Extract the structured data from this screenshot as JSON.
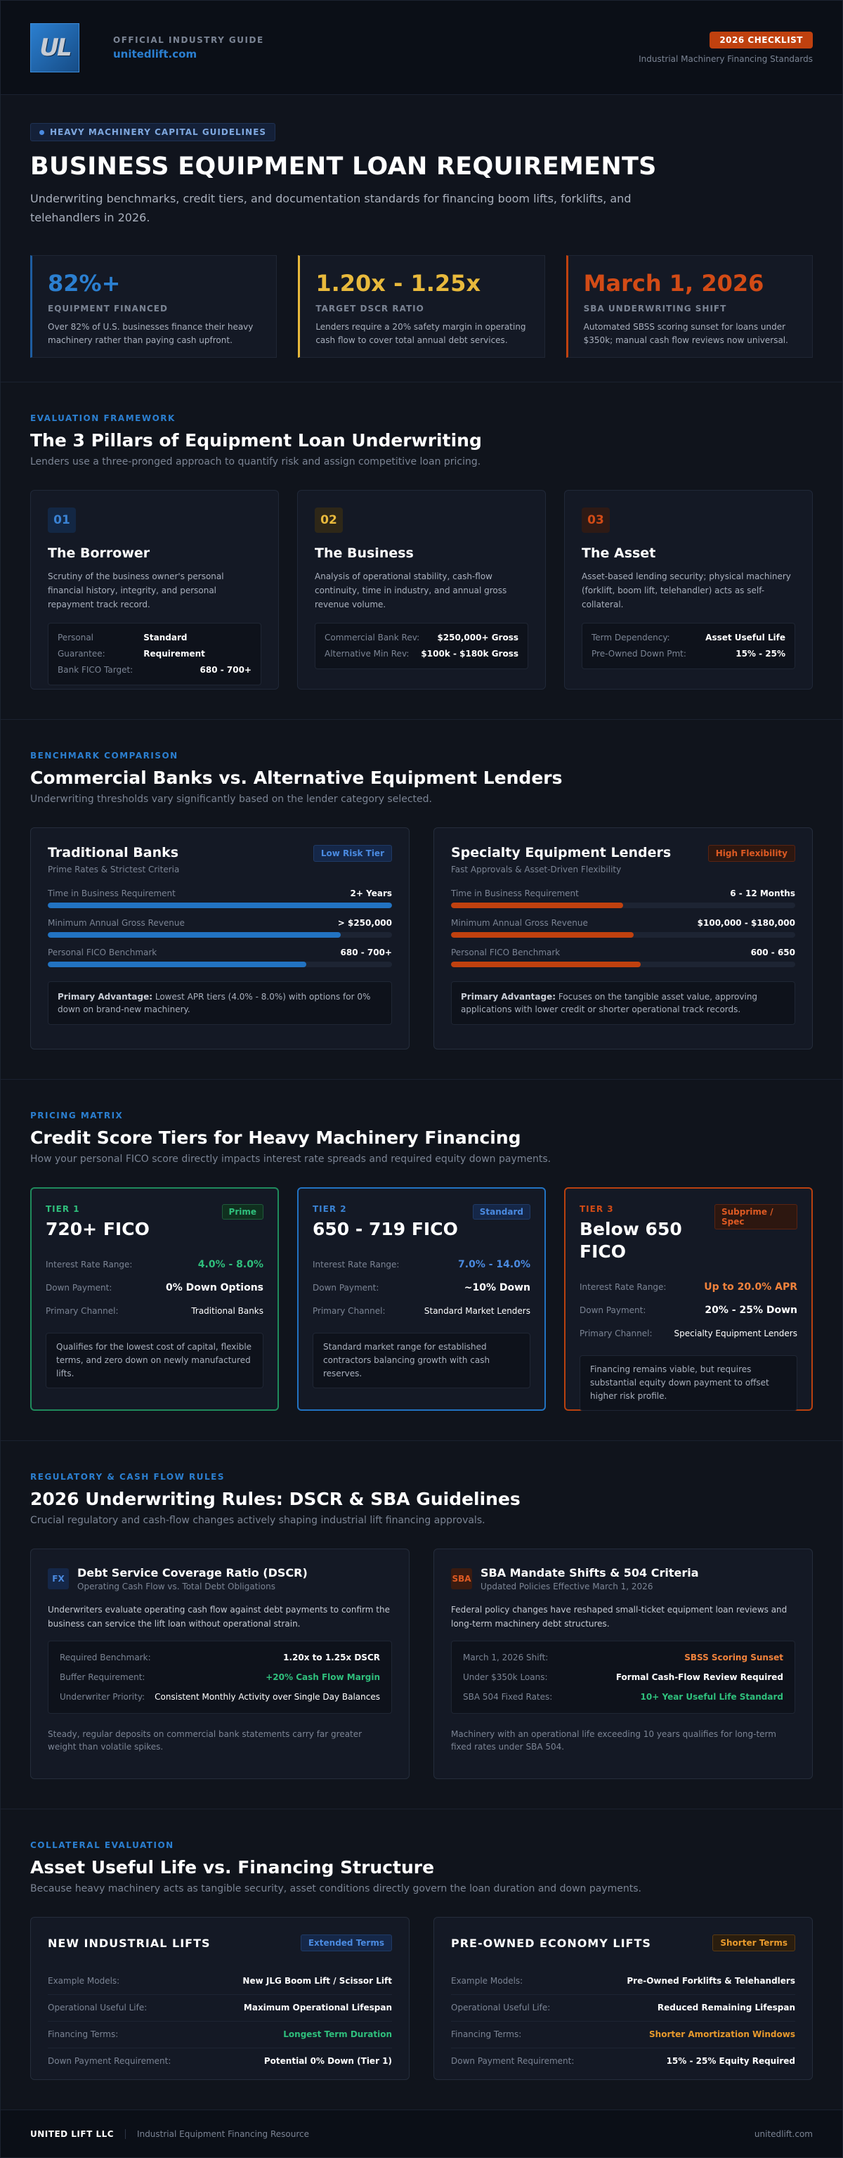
{
  "header": {
    "logo_text": "UL",
    "kicker": "OFFICIAL INDUSTRY GUIDE",
    "site": "unitedlift.com",
    "badge": "2026 CHECKLIST",
    "subtitle": "Industrial Machinery Financing Standards"
  },
  "hero": {
    "tag": "HEAVY MACHINERY CAPITAL GUIDELINES",
    "title": "BUSINESS EQUIPMENT LOAN REQUIREMENTS",
    "description": "Underwriting benchmarks, credit tiers, and documentation standards for financing boom lifts, forklifts, and telehandlers in 2026.",
    "stats": [
      {
        "value": "82%+",
        "label": "EQUIPMENT FINANCED",
        "text": "Over 82% of U.S. businesses finance their heavy machinery rather than paying cash upfront."
      },
      {
        "value": "1.20x - 1.25x",
        "label": "TARGET DSCR RATIO",
        "text": "Lenders require a 20% safety margin in operating cash flow to cover total annual debt services."
      },
      {
        "value": "March 1, 2026",
        "label": "SBA UNDERWRITING SHIFT",
        "text": "Automated SBSS scoring sunset for loans under $350k; manual cash flow reviews now universal."
      }
    ]
  },
  "pillars": {
    "kicker": "EVALUATION FRAMEWORK",
    "title": "The 3 Pillars of Equipment Loan Underwriting",
    "subtitle": "Lenders use a three-pronged approach to quantify risk and assign competitive loan pricing.",
    "items": [
      {
        "num": "01",
        "title": "The Borrower",
        "text": "Scrutiny of the business owner's personal financial history, integrity, and personal repayment track record.",
        "rows": [
          {
            "k": "Personal Guarantee:",
            "v": "Standard Requirement"
          },
          {
            "k": "Bank FICO Target:",
            "v": "680 - 700+"
          }
        ]
      },
      {
        "num": "02",
        "title": "The Business",
        "text": "Analysis of operational stability, cash-flow continuity, time in industry, and annual gross revenue volume.",
        "rows": [
          {
            "k": "Commercial Bank Rev:",
            "v": "$250,000+ Gross"
          },
          {
            "k": "Alternative Min Rev:",
            "v": "$100k - $180k Gross"
          }
        ]
      },
      {
        "num": "03",
        "title": "The Asset",
        "text": "Asset-based lending security; physical machinery (forklift, boom lift, telehandler) acts as self-collateral.",
        "rows": [
          {
            "k": "Term Dependency:",
            "v": "Asset Useful Life"
          },
          {
            "k": "Pre-Owned Down Pmt:",
            "v": "15% - 25%"
          }
        ]
      }
    ]
  },
  "comparison": {
    "kicker": "BENCHMARK COMPARISON",
    "title": "Commercial Banks vs. Alternative Equipment Lenders",
    "subtitle": "Underwriting thresholds vary significantly based on the lender category selected.",
    "banks": {
      "title": "Traditional Banks",
      "sub": "Prime Rates & Strictest Criteria",
      "badge": "Low Risk Tier",
      "metrics": [
        {
          "k": "Time in Business Requirement",
          "v": "2+ Years",
          "fill": 1.0
        },
        {
          "k": "Minimum Annual Gross Revenue",
          "v": "> $250,000",
          "fill": 0.85
        },
        {
          "k": "Personal FICO Benchmark",
          "v": "680 - 700+",
          "fill": 0.75
        }
      ],
      "adv_label": "Primary Advantage:",
      "adv_text": " Lowest APR tiers (4.0% - 8.0%) with options for 0% down on brand-new machinery."
    },
    "specialty": {
      "title": "Specialty Equipment Lenders",
      "sub": "Fast Approvals & Asset-Driven Flexibility",
      "badge": "High Flexibility",
      "metrics": [
        {
          "k": "Time in Business Requirement",
          "v": "6 - 12 Months",
          "fill": 0.5
        },
        {
          "k": "Minimum Annual Gross Revenue",
          "v": "$100,000 - $180,000",
          "fill": 0.53
        },
        {
          "k": "Personal FICO Benchmark",
          "v": "600 - 650",
          "fill": 0.55
        }
      ],
      "adv_label": "Primary Advantage:",
      "adv_text": " Focuses on the tangible asset value, approving applications with lower credit or shorter operational track records."
    }
  },
  "tiers": {
    "kicker": "PRICING MATRIX",
    "title": "Credit Score Tiers for Heavy Machinery Financing",
    "subtitle": "How your personal FICO score directly impacts interest rate spreads and required equity down payments.",
    "row_labels": {
      "rate": "Interest Rate Range:",
      "down": "Down Payment:",
      "channel": "Primary Channel:"
    },
    "items": [
      {
        "label": "TIER 1",
        "score": "720+ FICO",
        "badge": "Prime",
        "rate": "4.0% - 8.0%",
        "down": "0% Down Options",
        "channel": "Traditional Banks",
        "note": "Qualifies for the lowest cost of capital, flexible terms, and zero down on newly manufactured lifts."
      },
      {
        "label": "TIER 2",
        "score": "650 - 719 FICO",
        "badge": "Standard",
        "rate": "7.0% - 14.0%",
        "down": "~10% Down",
        "channel": "Standard Market Lenders",
        "note": "Standard market range for established contractors balancing growth with cash reserves."
      },
      {
        "label": "TIER 3",
        "score": "Below 650 FICO",
        "badge": "Subprime / Spec",
        "rate": "Up to 20.0% APR",
        "down": "20% - 25% Down",
        "channel": "Specialty Equipment Lenders",
        "note": "Financing remains viable, but requires substantial equity down payment to offset higher risk profile."
      }
    ]
  },
  "rules": {
    "kicker": "REGULATORY & CASH FLOW RULES",
    "title": "2026 Underwriting Rules: DSCR & SBA Guidelines",
    "subtitle": "Crucial regulatory and cash-flow changes actively shaping industrial lift financing approvals.",
    "dscr": {
      "icon": "FX",
      "title": "Debt Service Coverage Ratio (DSCR)",
      "sub": "Operating Cash Flow vs. Total Debt Obligations",
      "text": "Underwriters evaluate operating cash flow against debt payments to confirm the business can service the lift loan without operational strain.",
      "rows": [
        {
          "k": "Required Benchmark:",
          "v": "1.20x to 1.25x DSCR"
        },
        {
          "k": "Buffer Requirement:",
          "v": "+20% Cash Flow Margin"
        },
        {
          "k": "Underwriter Priority:",
          "v": "Consistent Monthly Activity over Single Day Balances"
        }
      ],
      "foot": "Steady, regular deposits on commercial bank statements carry far greater weight than volatile spikes."
    },
    "sba": {
      "icon": "SBA",
      "title": "SBA Mandate Shifts & 504 Criteria",
      "sub": "Updated Policies Effective March 1, 2026",
      "text": "Federal policy changes have reshaped small-ticket equipment loan reviews and long-term machinery debt structures.",
      "rows": [
        {
          "k": "March 1, 2026 Shift:",
          "v": "SBSS Scoring Sunset"
        },
        {
          "k": "Under $350k Loans:",
          "v": "Formal Cash-Flow Review Required"
        },
        {
          "k": "SBA 504 Fixed Rates:",
          "v": "10+ Year Useful Life Standard"
        }
      ],
      "foot": "Machinery with an operational life exceeding 10 years qualifies for long-term fixed rates under SBA 504."
    }
  },
  "life": {
    "kicker": "COLLATERAL EVALUATION",
    "title": "Asset Useful Life vs. Financing Structure",
    "subtitle": "Because heavy machinery acts as tangible security, asset conditions directly govern the loan duration and down payments.",
    "row_labels": {
      "models": "Example Models:",
      "life": "Operational Useful Life:",
      "terms": "Financing Terms:",
      "down": "Down Payment Requirement:"
    },
    "new": {
      "title": "NEW INDUSTRIAL LIFTS",
      "badge": "Extended Terms",
      "models": "New JLG Boom Lift / Scissor Lift",
      "life": "Maximum Operational Lifespan",
      "terms": "Longest Term Duration",
      "down": "Potential 0% Down (Tier 1)"
    },
    "used": {
      "title": "PRE-OWNED ECONOMY LIFTS",
      "badge": "Shorter Terms",
      "models": "Pre-Owned Forklifts & Telehandlers",
      "life": "Reduced Remaining Lifespan",
      "terms": "Shorter Amortization Windows",
      "down": "15% - 25% Equity Required"
    }
  },
  "footer": {
    "brand": "UNITED LIFT LLC",
    "resource": "Industrial Equipment Financing Resource",
    "site": "unitedlift.com"
  }
}
